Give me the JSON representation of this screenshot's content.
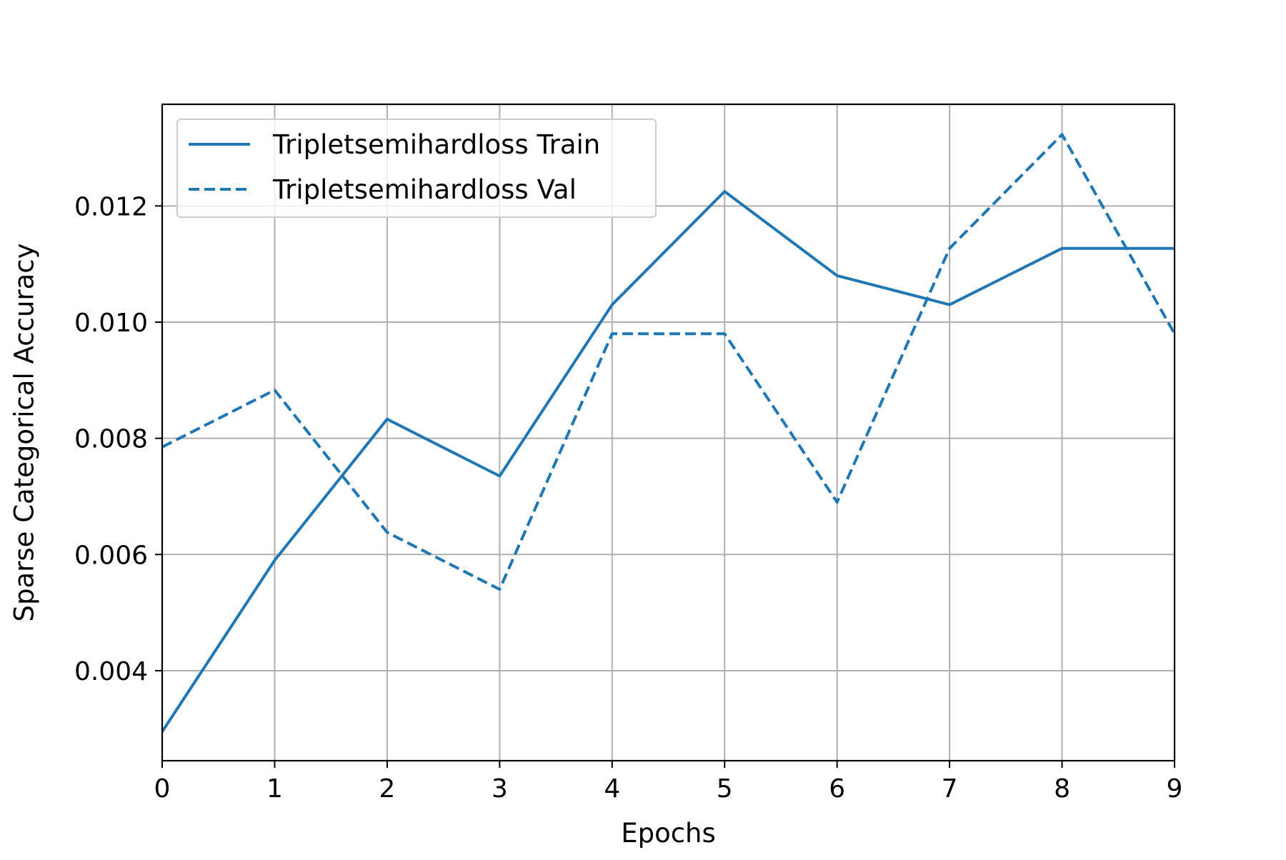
{
  "chart_data": {
    "type": "line",
    "title": "",
    "xlabel": "Epochs",
    "ylabel": "Sparse Categorical Accuracy",
    "x": [
      0,
      1,
      2,
      3,
      4,
      5,
      6,
      7,
      8,
      9
    ],
    "xlim": [
      0,
      9
    ],
    "ylim": [
      0.00245,
      0.01375
    ],
    "x_ticks": [
      0,
      1,
      2,
      3,
      4,
      5,
      6,
      7,
      8,
      9
    ],
    "x_tick_labels": [
      "0",
      "1",
      "2",
      "3",
      "4",
      "5",
      "6",
      "7",
      "8",
      "9"
    ],
    "y_ticks": [
      0.004,
      0.006,
      0.008,
      0.01,
      0.012
    ],
    "y_tick_labels": [
      "0.004",
      "0.006",
      "0.008",
      "0.010",
      "0.012"
    ],
    "grid": true,
    "legend_position": "top-left",
    "color": "#1f77b4",
    "series": [
      {
        "name": "Tripletsemihardloss Train",
        "line_style": "solid",
        "values": [
          0.00295,
          0.0059,
          0.00833,
          0.00735,
          0.0103,
          0.01225,
          0.0108,
          0.0103,
          0.01127,
          0.01127
        ]
      },
      {
        "name": "Tripletsemihardloss Val",
        "line_style": "dashed",
        "values": [
          0.00785,
          0.00883,
          0.00638,
          0.0054,
          0.0098,
          0.0098,
          0.0069,
          0.01127,
          0.01323,
          0.0098
        ]
      }
    ]
  }
}
